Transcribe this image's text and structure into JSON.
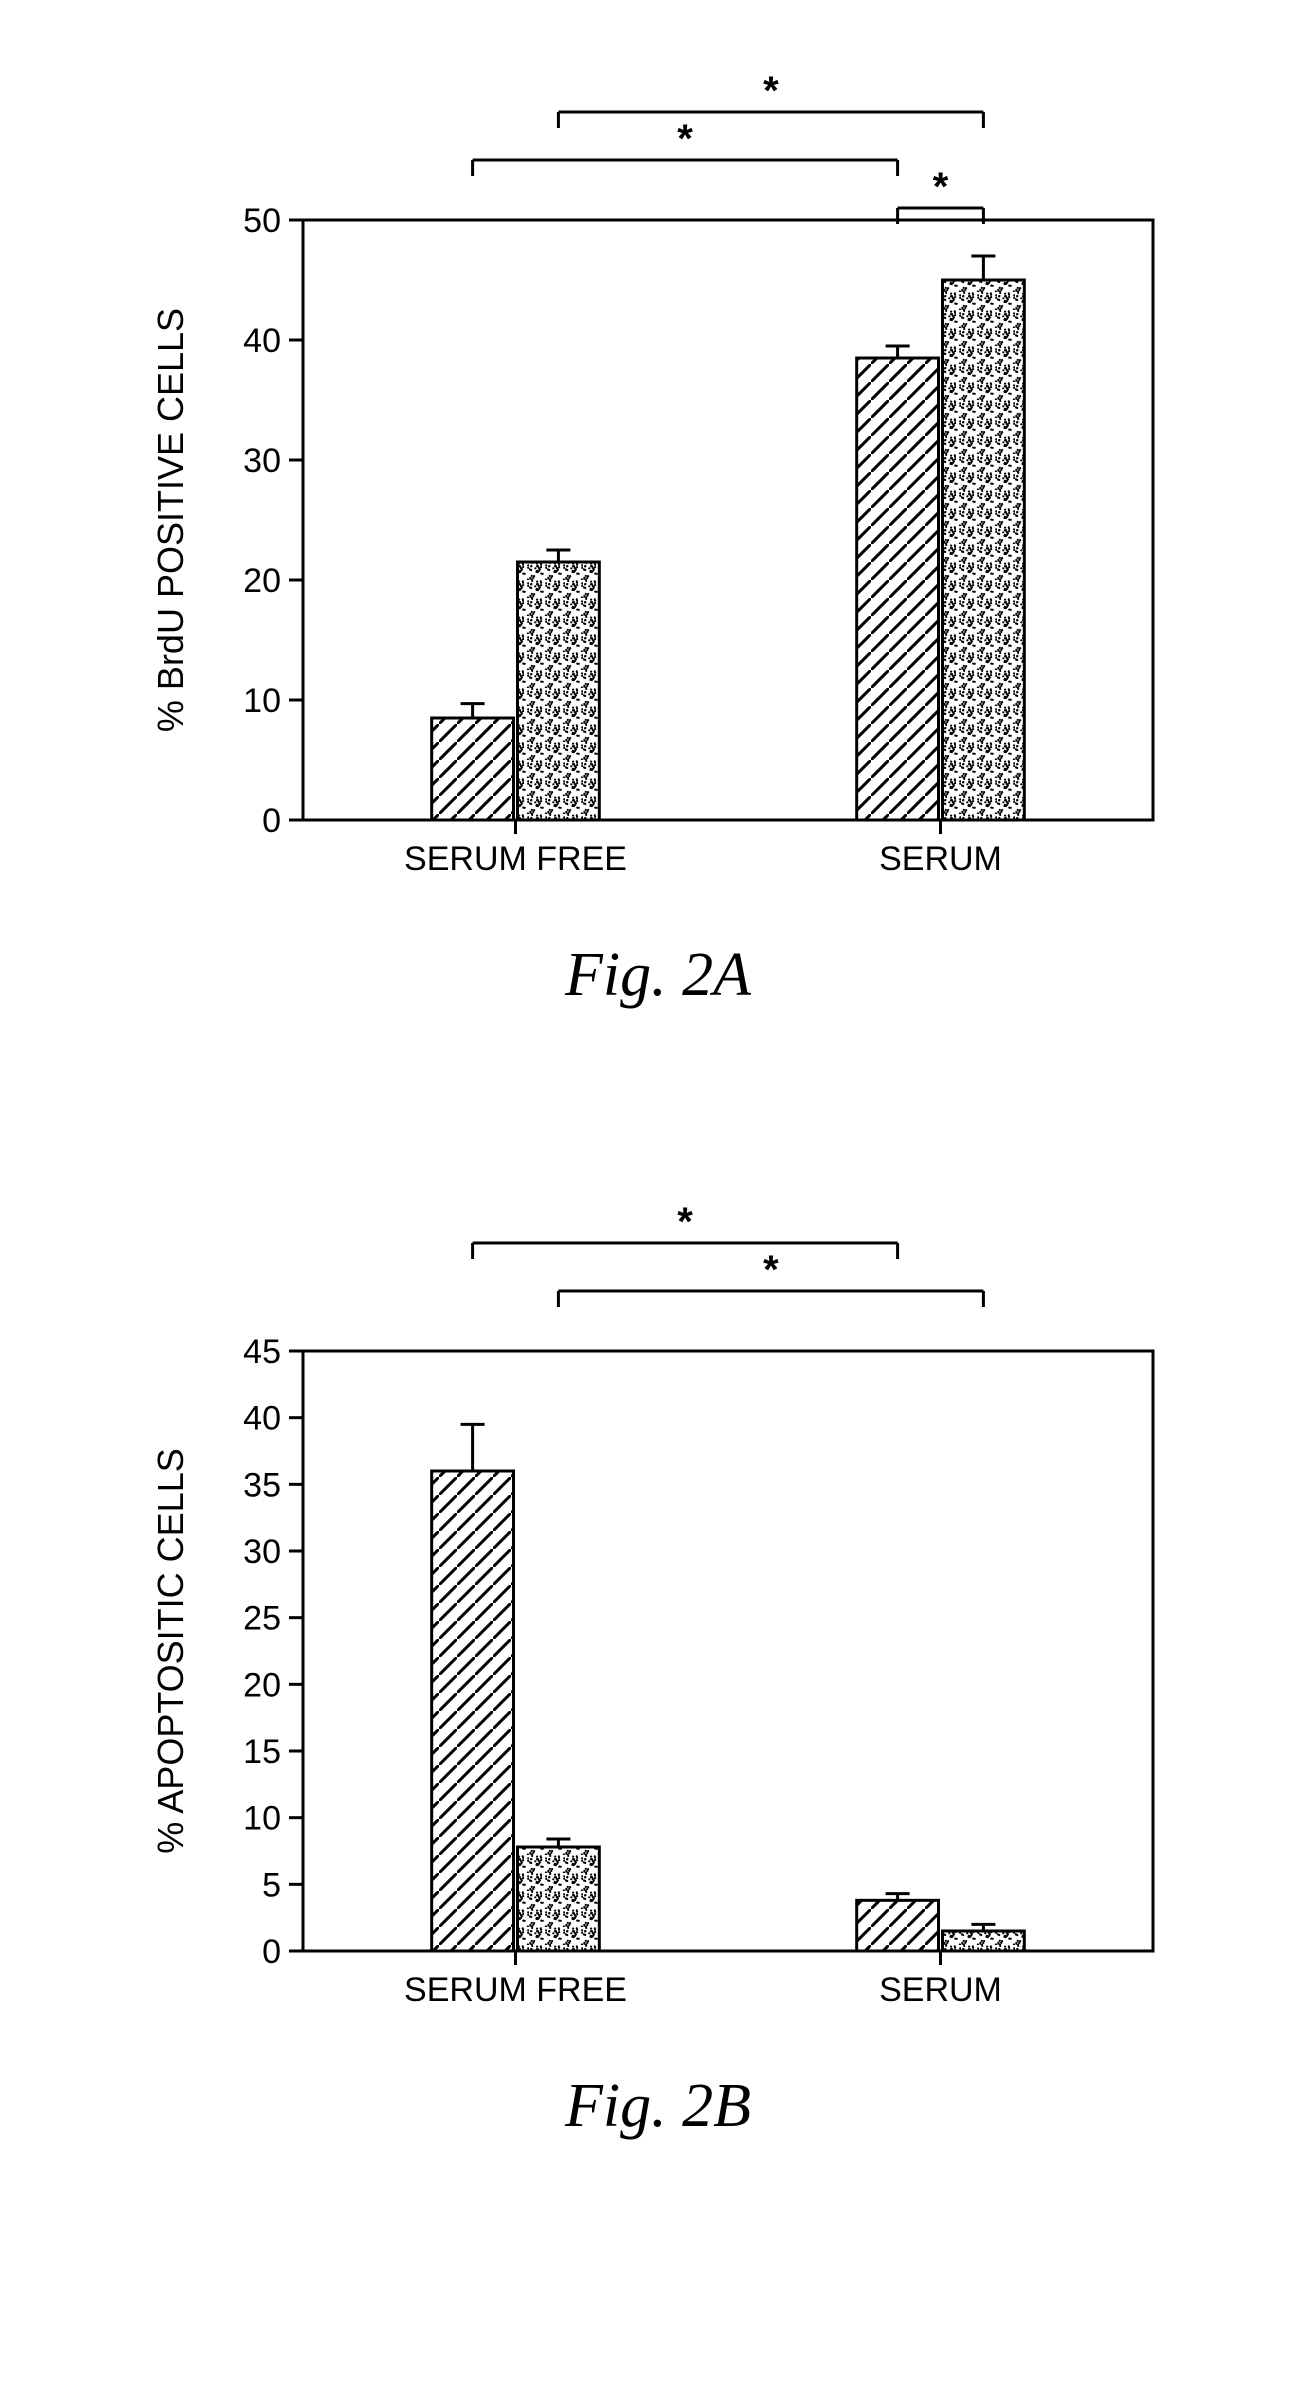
{
  "fig2a": {
    "type": "bar",
    "title": "Fig. 2A",
    "ylabel": "% BrdU POSITIVE CELLS",
    "label_fontsize": 36,
    "tick_fontsize": 34,
    "caption_fontsize": 62,
    "ylim": [
      0,
      50
    ],
    "ytick_step": 10,
    "categories": [
      "SERUM FREE",
      "SERUM"
    ],
    "groups": [
      {
        "bars": [
          {
            "value": 8.5,
            "err": 1.2,
            "fill": "hatch"
          },
          {
            "value": 21.5,
            "err": 1.0,
            "fill": "stipple"
          }
        ]
      },
      {
        "bars": [
          {
            "value": 38.5,
            "err": 1.0,
            "fill": "hatch"
          },
          {
            "value": 45.0,
            "err": 2.0,
            "fill": "stipple"
          }
        ]
      }
    ],
    "significance_brackets": [
      {
        "from_group": 0,
        "from_bar": 0,
        "to_group": 1,
        "to_bar": 0,
        "label": "*",
        "level": 1
      },
      {
        "from_group": 0,
        "from_bar": 1,
        "to_group": 1,
        "to_bar": 1,
        "label": "*",
        "level": 2
      },
      {
        "from_group": 1,
        "from_bar": 0,
        "to_group": 1,
        "to_bar": 1,
        "label": "*",
        "level": 0
      }
    ],
    "colors": {
      "axis": "#000000",
      "bar_stroke": "#000000",
      "hatch_stroke": "#000000",
      "stipple_fill": "#000000",
      "background": "#ffffff"
    },
    "bar_width": 0.35,
    "stroke_width": 3
  },
  "fig2b": {
    "type": "bar",
    "title": "Fig. 2B",
    "ylabel": "% APOPTOSITIC CELLS",
    "label_fontsize": 36,
    "tick_fontsize": 34,
    "caption_fontsize": 62,
    "ylim": [
      0,
      45
    ],
    "ytick_step": 5,
    "categories": [
      "SERUM FREE",
      "SERUM"
    ],
    "groups": [
      {
        "bars": [
          {
            "value": 36.0,
            "err": 3.5,
            "fill": "hatch"
          },
          {
            "value": 7.8,
            "err": 0.6,
            "fill": "stipple"
          }
        ]
      },
      {
        "bars": [
          {
            "value": 3.8,
            "err": 0.5,
            "fill": "hatch"
          },
          {
            "value": 1.5,
            "err": 0.5,
            "fill": "stipple"
          }
        ]
      }
    ],
    "significance_brackets": [
      {
        "from_group": 0,
        "from_bar": 0,
        "to_group": 1,
        "to_bar": 0,
        "label": "*",
        "level": 2
      },
      {
        "from_group": 0,
        "from_bar": 1,
        "to_group": 1,
        "to_bar": 1,
        "label": "*",
        "level": 1
      }
    ],
    "colors": {
      "axis": "#000000",
      "bar_stroke": "#000000",
      "hatch_stroke": "#000000",
      "stipple_fill": "#000000",
      "background": "#ffffff"
    },
    "bar_width": 0.35,
    "stroke_width": 3
  }
}
